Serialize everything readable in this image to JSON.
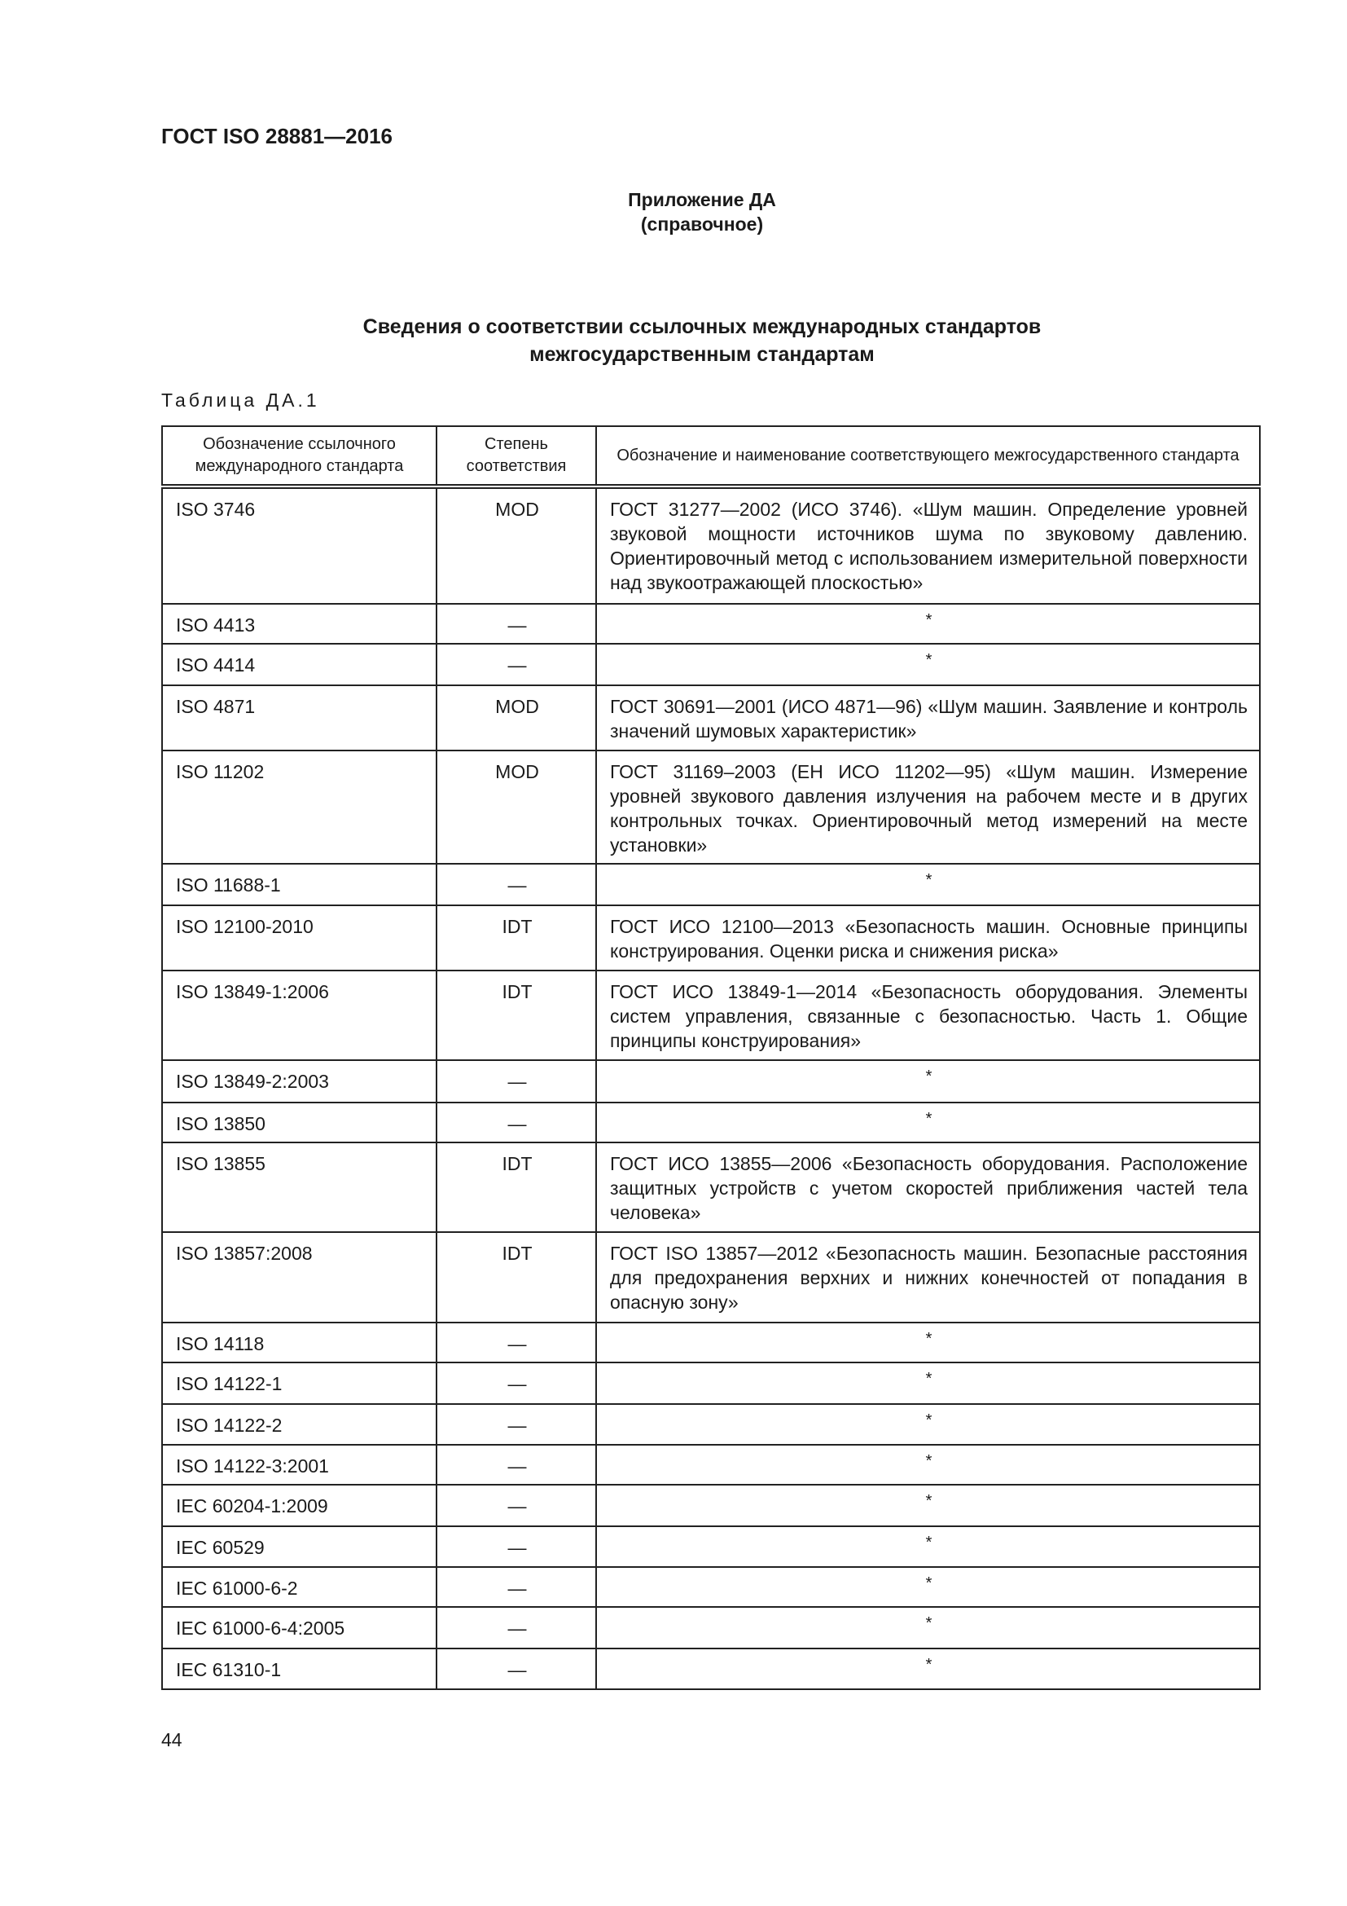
{
  "document_header": "ГОСТ ISO 28881—2016",
  "annex": {
    "title": "Приложение ДА",
    "subtitle": "(справочное)"
  },
  "section_title": {
    "line1": "Сведения о соответствии ссылочных международных стандартов",
    "line2": "межгосударственным стандартам"
  },
  "table_label": "Таблица ДА.1",
  "table": {
    "headers": [
      "Обозначение ссылочного международного стандарта",
      "Степень соответствия",
      "Обозначение и наименование соответствующего межгосударственного стандарта"
    ],
    "rows": [
      {
        "ref": "ISO 3746",
        "degree": "MOD",
        "national": "ГОСТ 31277—2002 (ИСО 3746). «Шум машин. Определение уров­ней звуковой мощности источников шума по звуковому давлению. Ориентировочный метод с использованием измерительной по­верхности над звукоотражающей плоскостью»"
      },
      {
        "ref": "ISO 4413",
        "degree": "—",
        "national": "*"
      },
      {
        "ref": "ISO 4414",
        "degree": "—",
        "national": "*"
      },
      {
        "ref": "ISO 4871",
        "degree": "MOD",
        "national": "ГОСТ 30691—2001 (ИСО 4871—96) «Шум машин. Заявление и контроль значений шумовых характеристик»"
      },
      {
        "ref": "ISO 11202",
        "degree": "MOD",
        "national": "ГОСТ 31169–2003 (ЕН ИСО 11202—95) «Шум машин. Измерение уровней звукового давления излучения на рабочем месте и в дру­гих контрольных точках. Ориентировочный метод измерений на месте установки»"
      },
      {
        "ref": "ISO 11688-1",
        "degree": "—",
        "national": "*"
      },
      {
        "ref": "ISO 12100-2010",
        "degree": "IDT",
        "national": "ГОСТ ИСО 12100—2013 «Безопасность машин. Основные принци­пы конструирования. Оценки риска и снижения риска»"
      },
      {
        "ref": "ISO 13849-1:2006",
        "degree": "IDT",
        "national": "ГОСТ ИСО 13849-1—2014 «Безопасность оборудования. Элемен­ты систем управления, связанные с безопасностью. Часть 1. Об­щие принципы конструирования»"
      },
      {
        "ref": "ISO 13849-2:2003",
        "degree": "—",
        "national": "*"
      },
      {
        "ref": "ISO 13850",
        "degree": "—",
        "national": "*"
      },
      {
        "ref": "ISO 13855",
        "degree": "IDT",
        "national": "ГОСТ ИСО 13855—2006 «Безопасность оборудования. Располо­жение защитных устройств с учетом скоростей приближения ча­стей тела человека»"
      },
      {
        "ref": "ISO 13857:2008",
        "degree": "IDT",
        "national": "ГОСТ ISO 13857—2012 «Безопасность машин. Безопасные рас­стояния для предохранения верхних и нижних конечностей от по­падания в опасную зону»"
      },
      {
        "ref": "ISO 14118",
        "degree": "—",
        "national": "*"
      },
      {
        "ref": "ISO 14122-1",
        "degree": "—",
        "national": "*"
      },
      {
        "ref": "ISO 14122-2",
        "degree": "—",
        "national": "*"
      },
      {
        "ref": "ISO 14122-3:2001",
        "degree": "—",
        "national": "*"
      },
      {
        "ref": "IEC 60204-1:2009",
        "degree": "—",
        "national": "*"
      },
      {
        "ref": "IEC 60529",
        "degree": "—",
        "national": "*"
      },
      {
        "ref": "IEC 61000-6-2",
        "degree": "—",
        "national": "*"
      },
      {
        "ref": "IEC 61000-6-4:2005",
        "degree": "—",
        "national": "*"
      },
      {
        "ref": "IEC 61310-1",
        "degree": "—",
        "national": "*"
      }
    ]
  },
  "page_number": "44"
}
